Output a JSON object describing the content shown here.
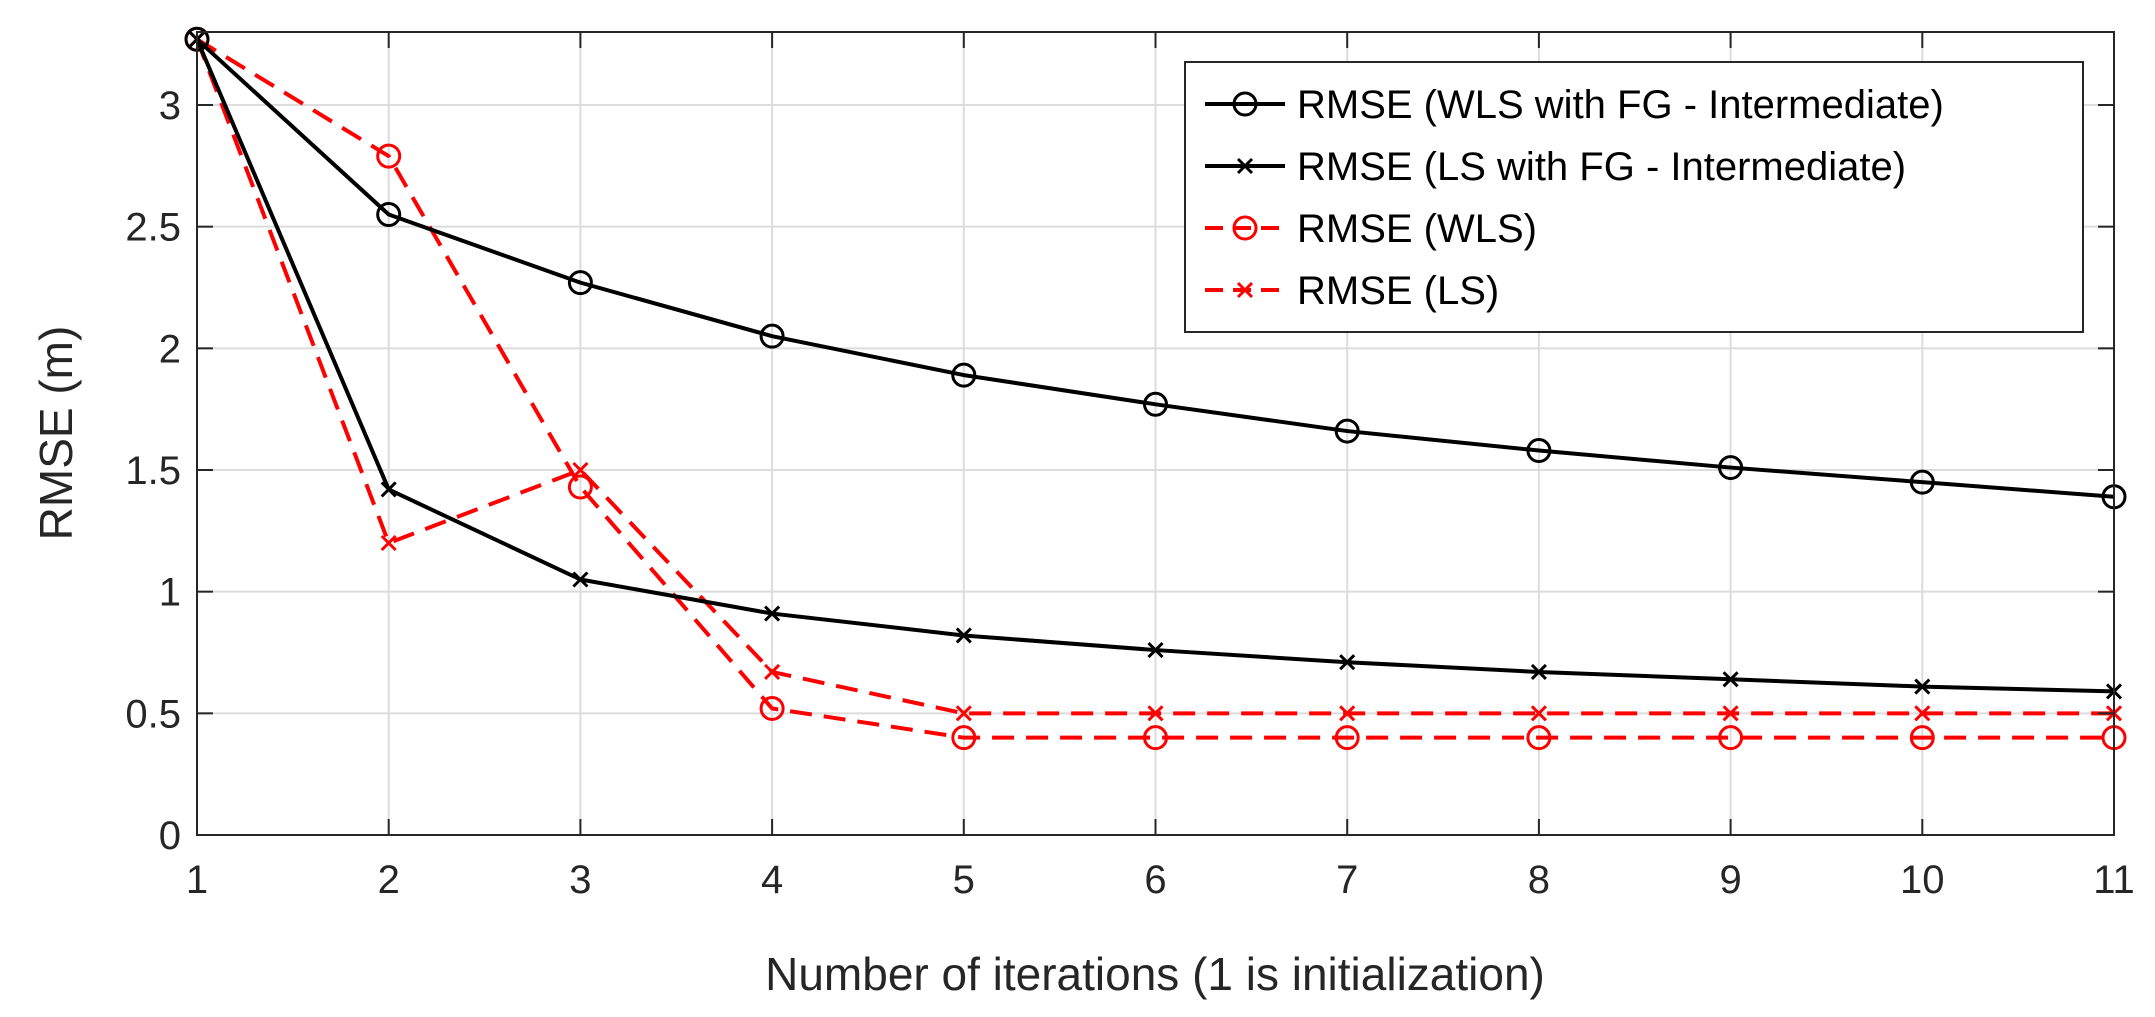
{
  "chart_data": {
    "type": "line",
    "title": "",
    "xlabel": "Number of iterations (1 is initialization)",
    "ylabel": "RMSE (m)",
    "x": [
      1,
      2,
      3,
      4,
      5,
      6,
      7,
      8,
      9,
      10,
      11
    ],
    "xlim": [
      1,
      11
    ],
    "ylim": [
      0,
      3.3
    ],
    "xticks": [
      1,
      2,
      3,
      4,
      5,
      6,
      7,
      8,
      9,
      10,
      11
    ],
    "yticks": [
      0,
      0.5,
      1,
      1.5,
      2,
      2.5,
      3
    ],
    "xtick_labels": [
      "1",
      "2",
      "3",
      "4",
      "5",
      "6",
      "7",
      "8",
      "9",
      "10",
      "11"
    ],
    "ytick_labels": [
      "0",
      "0.5",
      "1",
      "1.5",
      "2",
      "2.5",
      "3"
    ],
    "grid": true,
    "legend_position": "top-right",
    "series": [
      {
        "name": "RMSE (WLS with FG - Intermediate)",
        "color": "#000000",
        "line_style": "solid",
        "marker": "circle",
        "values": [
          3.27,
          2.55,
          2.27,
          2.05,
          1.89,
          1.77,
          1.66,
          1.58,
          1.51,
          1.45,
          1.39
        ]
      },
      {
        "name": "RMSE (LS with FG - Intermediate)",
        "color": "#000000",
        "line_style": "solid",
        "marker": "x",
        "values": [
          3.27,
          1.42,
          1.05,
          0.91,
          0.82,
          0.76,
          0.71,
          0.67,
          0.64,
          0.61,
          0.59
        ]
      },
      {
        "name": "RMSE (WLS)",
        "color": "#ff0000",
        "line_style": "dashed",
        "marker": "circle",
        "values": [
          3.27,
          2.79,
          1.43,
          0.52,
          0.4,
          0.4,
          0.4,
          0.4,
          0.4,
          0.4,
          0.4
        ]
      },
      {
        "name": "RMSE (LS)",
        "color": "#ff0000",
        "line_style": "dashed",
        "marker": "x",
        "values": [
          3.27,
          1.2,
          1.5,
          0.67,
          0.5,
          0.5,
          0.5,
          0.5,
          0.5,
          0.5,
          0.5
        ]
      }
    ]
  }
}
